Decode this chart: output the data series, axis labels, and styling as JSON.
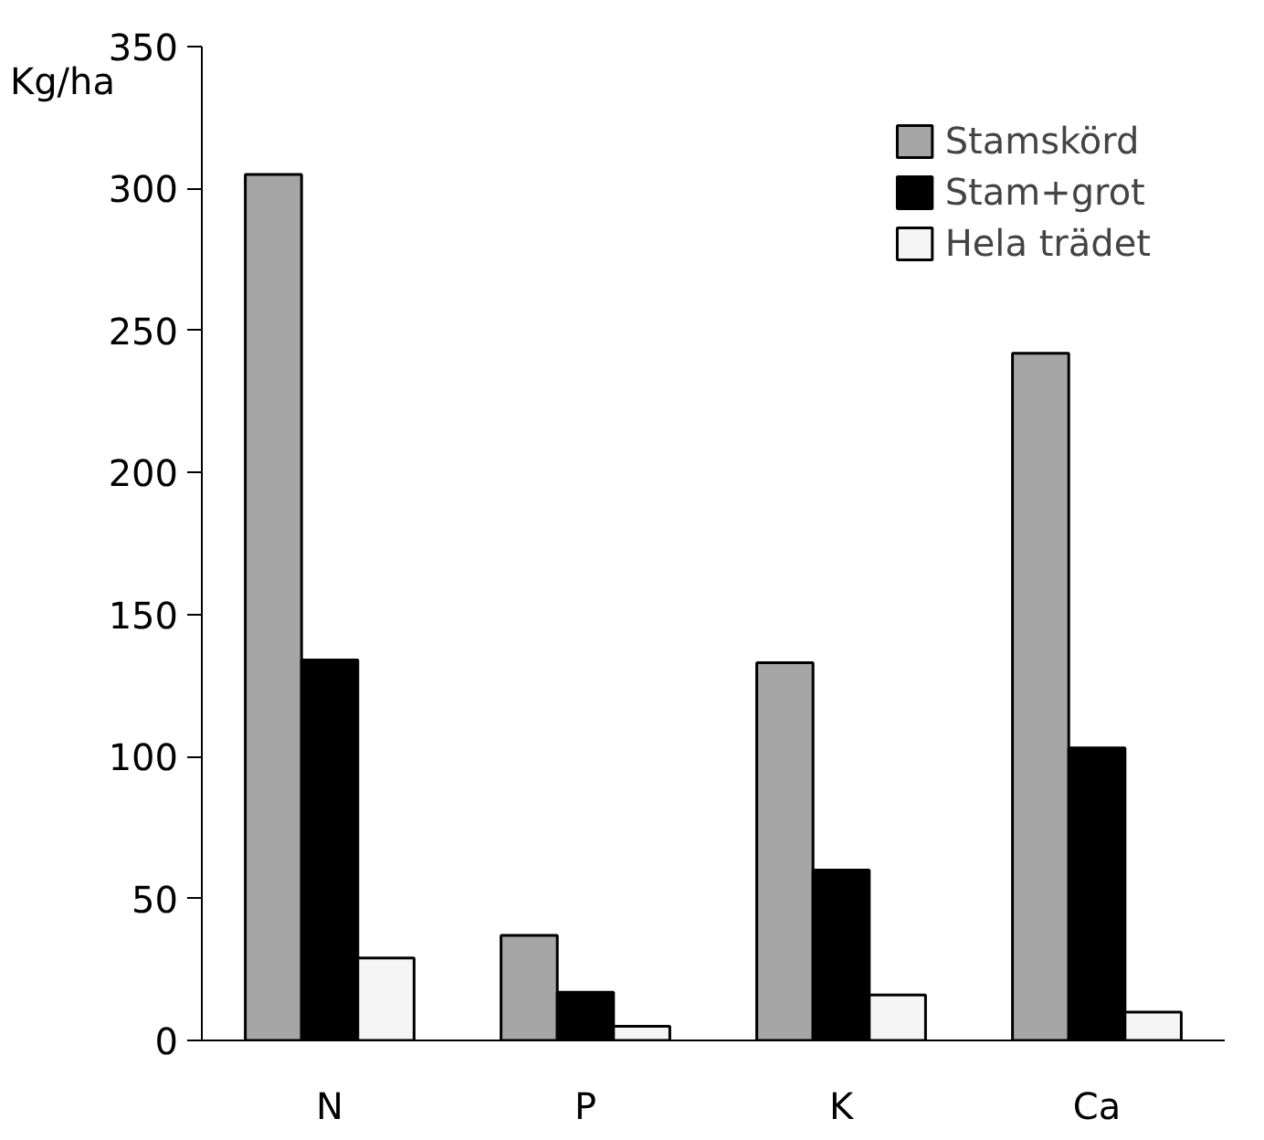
{
  "chart_data": {
    "type": "bar",
    "ylabel": "Kg/ha",
    "categories": [
      "N",
      "P",
      "K",
      "Ca"
    ],
    "series": [
      {
        "name": "Stamskörd",
        "color": "#a6a6a6",
        "values": [
          305,
          37,
          133,
          242
        ]
      },
      {
        "name": "Stam+grot",
        "color": "#000000",
        "values": [
          134,
          17,
          60,
          103
        ]
      },
      {
        "name": "Hela trädet",
        "color": "#f5f5f5",
        "values": [
          29,
          5,
          16,
          10
        ]
      }
    ],
    "ylim": [
      0,
      350
    ],
    "yticks": [
      0,
      50,
      100,
      150,
      200,
      250,
      300,
      350
    ],
    "grid": false,
    "legend": "top right"
  }
}
